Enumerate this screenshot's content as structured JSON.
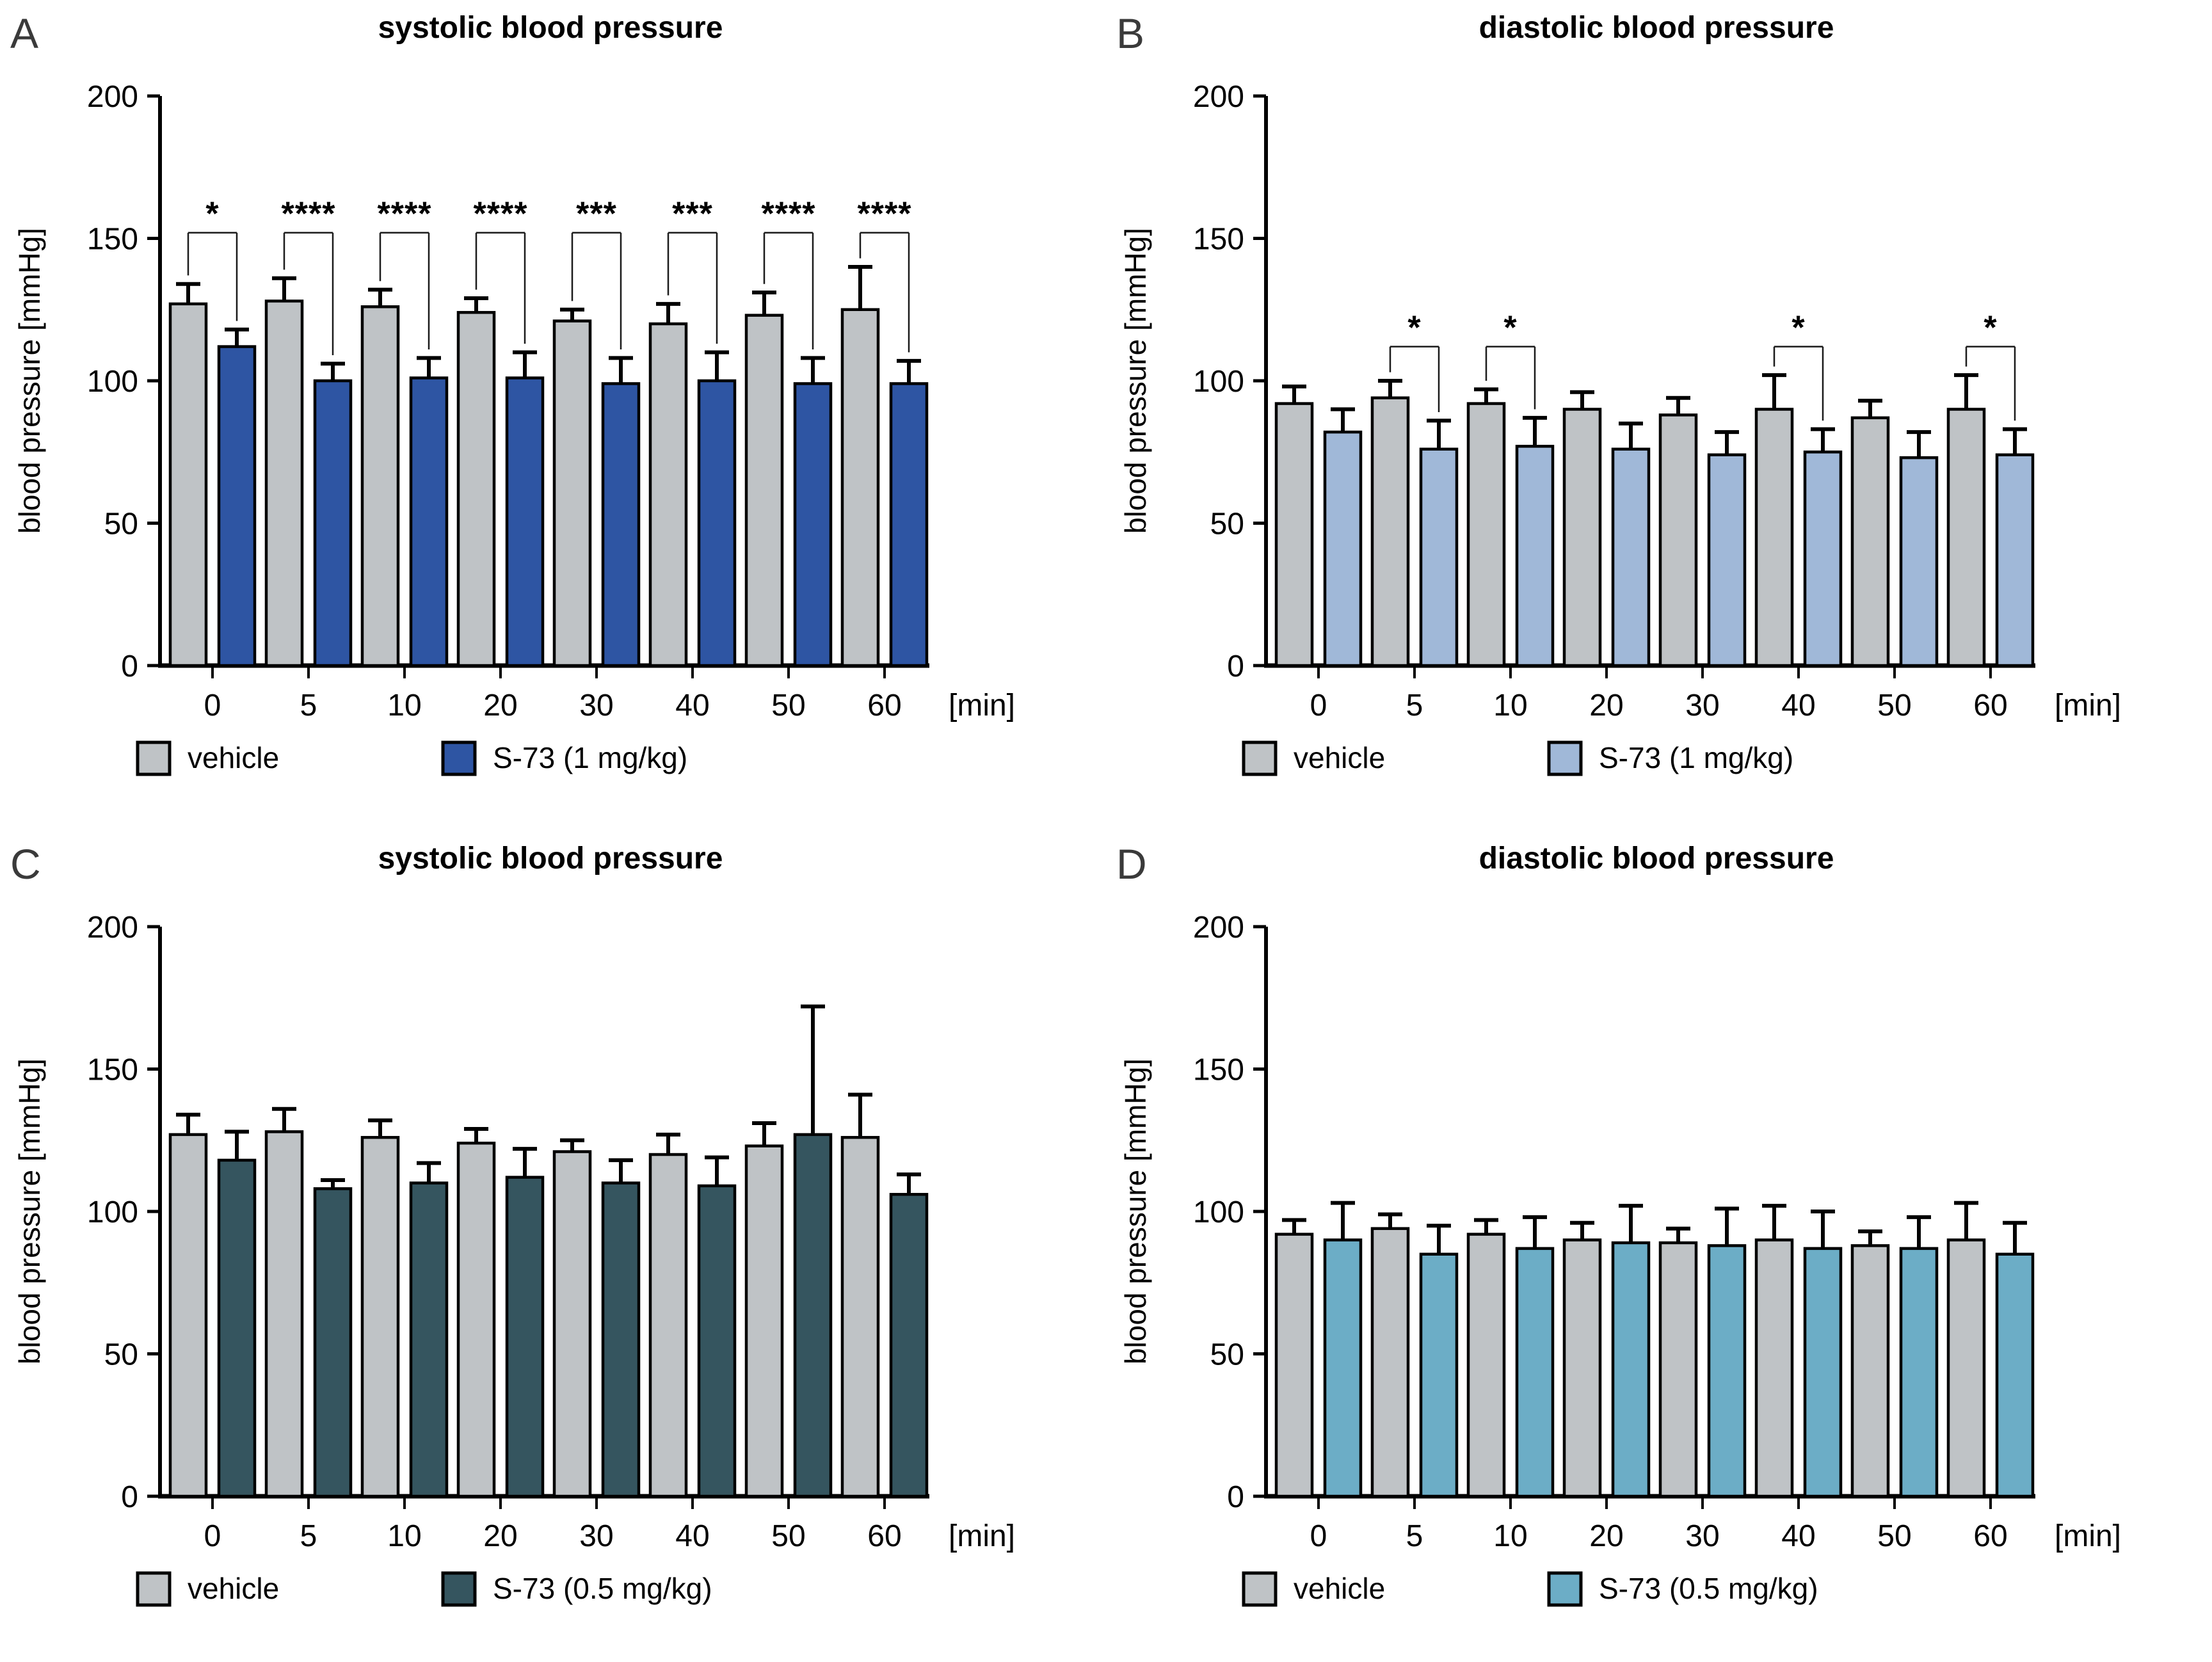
{
  "figure": {
    "background": "#ffffff",
    "axis_color": "#000000",
    "bar_outline_color": "#000000",
    "bracket_color": "#1a1a1a",
    "min_label": "[min]"
  },
  "chart_data": [
    {
      "type": "bar",
      "panel_letter": "A",
      "title": "systolic blood pressure",
      "ylabel": "blood pressure [mmHg]",
      "xlabel": "[min]",
      "ylim": [
        0,
        200
      ],
      "yticks": [
        0,
        50,
        100,
        150,
        200
      ],
      "categories": [
        "0",
        "5",
        "10",
        "20",
        "30",
        "40",
        "50",
        "60"
      ],
      "grid": "off",
      "legend_position": "bottom",
      "series": [
        {
          "name": "vehicle",
          "color": "#bfc3c6",
          "values": [
            127,
            128,
            126,
            124,
            121,
            120,
            123,
            125
          ],
          "errors": [
            7,
            8,
            6,
            5,
            4,
            7,
            8,
            15
          ]
        },
        {
          "name": "S-73 (1 mg/kg)",
          "color": "#2e55a3",
          "values": [
            112,
            100,
            101,
            101,
            99,
            100,
            99,
            99
          ],
          "errors": [
            6,
            6,
            7,
            9,
            9,
            10,
            9,
            8
          ]
        }
      ],
      "significance": [
        "*",
        "****",
        "****",
        "****",
        "***",
        "***",
        "****",
        "****"
      ],
      "sig_line_y": 152
    },
    {
      "type": "bar",
      "panel_letter": "B",
      "title": "diastolic blood pressure",
      "ylabel": "blood pressure [mmHg]",
      "xlabel": "[min]",
      "ylim": [
        0,
        200
      ],
      "yticks": [
        0,
        50,
        100,
        150,
        200
      ],
      "categories": [
        "0",
        "5",
        "10",
        "20",
        "30",
        "40",
        "50",
        "60"
      ],
      "grid": "off",
      "legend_position": "bottom",
      "series": [
        {
          "name": "vehicle",
          "color": "#bfc3c6",
          "values": [
            92,
            94,
            92,
            90,
            88,
            90,
            87,
            90
          ],
          "errors": [
            6,
            6,
            5,
            6,
            6,
            12,
            6,
            12
          ]
        },
        {
          "name": "S-73 (1 mg/kg)",
          "color": "#a0b8d8",
          "values": [
            82,
            76,
            77,
            76,
            74,
            75,
            73,
            74
          ],
          "errors": [
            8,
            10,
            10,
            9,
            8,
            8,
            9,
            9
          ]
        }
      ],
      "significance": [
        null,
        "*",
        "*",
        null,
        null,
        "*",
        null,
        "*"
      ],
      "sig_line_y": 112
    },
    {
      "type": "bar",
      "panel_letter": "C",
      "title": "systolic blood pressure",
      "ylabel": "blood pressure [mmHg]",
      "xlabel": "[min]",
      "ylim": [
        0,
        200
      ],
      "yticks": [
        0,
        50,
        100,
        150,
        200
      ],
      "categories": [
        "0",
        "5",
        "10",
        "20",
        "30",
        "40",
        "50",
        "60"
      ],
      "grid": "off",
      "legend_position": "bottom",
      "series": [
        {
          "name": "vehicle",
          "color": "#bfc3c6",
          "values": [
            127,
            128,
            126,
            124,
            121,
            120,
            123,
            126
          ],
          "errors": [
            7,
            8,
            6,
            5,
            4,
            7,
            8,
            15
          ]
        },
        {
          "name": "S-73 (0.5 mg/kg)",
          "color": "#35555f",
          "values": [
            118,
            108,
            110,
            112,
            110,
            109,
            127,
            106
          ],
          "errors": [
            10,
            3,
            7,
            10,
            8,
            10,
            45,
            7
          ]
        }
      ],
      "significance": [
        null,
        null,
        null,
        null,
        null,
        null,
        null,
        null
      ],
      "sig_line_y": null
    },
    {
      "type": "bar",
      "panel_letter": "D",
      "title": "diastolic blood pressure",
      "ylabel": "blood pressure [mmHg]",
      "xlabel": "[min]",
      "ylim": [
        0,
        200
      ],
      "yticks": [
        0,
        50,
        100,
        150,
        200
      ],
      "categories": [
        "0",
        "5",
        "10",
        "20",
        "30",
        "40",
        "50",
        "60"
      ],
      "grid": "off",
      "legend_position": "bottom",
      "series": [
        {
          "name": "vehicle",
          "color": "#bfc3c6",
          "values": [
            92,
            94,
            92,
            90,
            89,
            90,
            88,
            90
          ],
          "errors": [
            5,
            5,
            5,
            6,
            5,
            12,
            5,
            13
          ]
        },
        {
          "name": "S-73 (0.5 mg/kg)",
          "color": "#6cadc6",
          "values": [
            90,
            85,
            87,
            89,
            88,
            87,
            87,
            85
          ],
          "errors": [
            13,
            10,
            11,
            13,
            13,
            13,
            11,
            11
          ]
        }
      ],
      "significance": [
        null,
        null,
        null,
        null,
        null,
        null,
        null,
        null
      ],
      "sig_line_y": null
    }
  ]
}
